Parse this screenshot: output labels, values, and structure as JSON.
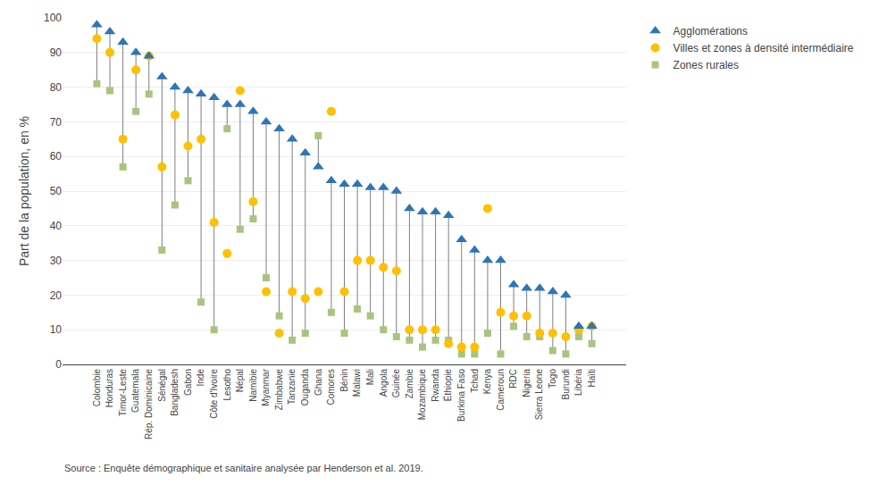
{
  "chart_data": {
    "type": "scatter",
    "categories": [
      "Colombie",
      "Honduras",
      "Timor-Leste",
      "Guatemala",
      "Rép. Dominicaine",
      "Sénégal",
      "Bangladesh",
      "Gabon",
      "Inde",
      "Côte d'Ivoire",
      "Lesotho",
      "Népal",
      "Namibie",
      "Myanmar",
      "Zimbabwe",
      "Tanzanie",
      "Ouganda",
      "Ghana",
      "Comores",
      "Bénin",
      "Malawi",
      "Mali",
      "Angola",
      "Guinée",
      "Zambie",
      "Mozambique",
      "Rwanda",
      "Éthiopie",
      "Burkina Faso",
      "Tchad",
      "Kenya",
      "Cameroun",
      "RDC",
      "Nigeria",
      "Sierra Leone",
      "Togo",
      "Burundi",
      "Libéria",
      "Haïti"
    ],
    "series": [
      {
        "name": "Agglomérations",
        "color": "#2e75b6",
        "marker": "triangle-up",
        "values": [
          98,
          96,
          93,
          90,
          89,
          83,
          80,
          79,
          78,
          77,
          75,
          75,
          73,
          70,
          68,
          65,
          61,
          57,
          53,
          52,
          52,
          51,
          51,
          50,
          45,
          44,
          44,
          43,
          36,
          33,
          30,
          30,
          23,
          22,
          22,
          21,
          20,
          11,
          11
        ]
      },
      {
        "name": "Villes et zones à densité intermédiaire",
        "color": "#ffc000",
        "marker": "circle",
        "values": [
          94,
          90,
          65,
          85,
          89,
          57,
          72,
          63,
          65,
          41,
          32,
          79,
          47,
          21,
          9,
          21,
          19,
          21,
          73,
          21,
          30,
          30,
          28,
          27,
          10,
          10,
          10,
          6,
          5,
          5,
          45,
          15,
          14,
          14,
          9,
          9,
          8,
          10,
          11
        ]
      },
      {
        "name": "Zones rurales",
        "color": "#a9c47f",
        "marker": "square",
        "values": [
          81,
          79,
          57,
          73,
          78,
          33,
          46,
          53,
          18,
          10,
          68,
          39,
          42,
          25,
          14,
          7,
          9,
          66,
          15,
          9,
          16,
          14,
          10,
          8,
          7,
          5,
          7,
          7,
          3,
          3,
          9,
          3,
          11,
          8,
          8,
          4,
          3,
          8,
          6
        ]
      }
    ],
    "ylabel": "Part de la population, en %",
    "ylim": [
      0,
      100
    ],
    "yticks": [
      0,
      10,
      20,
      30,
      40,
      50,
      60,
      70,
      80,
      90,
      100
    ],
    "grid": true,
    "legend": "upper right",
    "annotations": [
      "Source : Enquête démographique et sanitaire analysée par Henderson et al. 2019."
    ]
  }
}
